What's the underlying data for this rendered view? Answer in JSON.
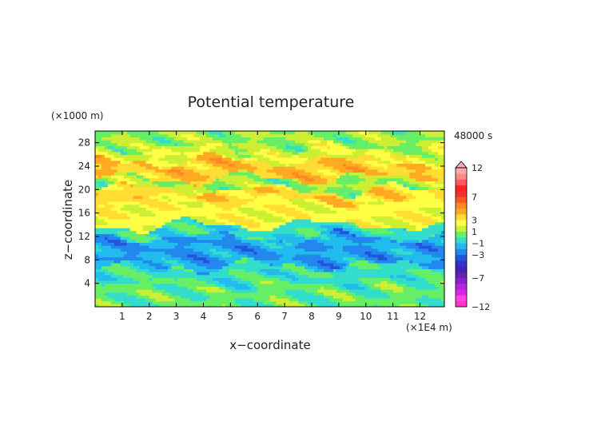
{
  "chart_data": {
    "type": "heatmap",
    "title": "Potential temperature",
    "time_label": "48000 s",
    "xlabel": "x−coordinate",
    "ylabel": "z−coordinate",
    "x_unit": "(×1E4 m)",
    "y_unit": "(×1000 m)",
    "xlim": [
      0,
      12.9
    ],
    "ylim": [
      0,
      30
    ],
    "x_ticks": [
      1,
      2,
      3,
      4,
      5,
      6,
      7,
      8,
      9,
      10,
      11,
      12
    ],
    "y_ticks": [
      4,
      8,
      12,
      16,
      20,
      24,
      28
    ],
    "colorbar": {
      "levels": [
        -12,
        -11,
        -10,
        -9,
        -8,
        -7,
        -6,
        -5,
        -4,
        -3,
        -2,
        -1,
        0,
        1,
        2,
        3,
        4,
        5,
        6,
        7,
        8,
        9,
        10,
        11,
        12
      ],
      "labeled_ticks": [
        "12",
        "7",
        "3",
        "1",
        "−1",
        "−3",
        "−7",
        "−12"
      ],
      "colors": [
        "#ff33cc",
        "#ff44dd",
        "#dd22ee",
        "#bb22dd",
        "#8822cc",
        "#6622aa",
        "#4422bb",
        "#3333cc",
        "#2255dd",
        "#2288ee",
        "#22bbee",
        "#33ddcc",
        "#66ee66",
        "#ccee33",
        "#ffff44",
        "#ffdd33",
        "#ffaa22",
        "#ff8822",
        "#ff5522",
        "#ee3333",
        "#ff2222",
        "#ff5566",
        "#ff8888",
        "#ffaaaa"
      ]
    },
    "layers": [
      {
        "z_range": [
          0,
          4
        ],
        "value": 0.3
      },
      {
        "z_range": [
          4,
          7
        ],
        "value": -0.3
      },
      {
        "z_range": [
          7,
          12
        ],
        "value": -2.0
      },
      {
        "z_range": [
          12,
          14
        ],
        "value": -0.5
      },
      {
        "z_range": [
          14,
          18
        ],
        "value": 2.5
      },
      {
        "z_range": [
          18,
          20
        ],
        "value": 3.5
      },
      {
        "z_range": [
          20,
          22
        ],
        "value": 1.0
      },
      {
        "z_range": [
          22,
          25
        ],
        "value": 4.0
      },
      {
        "z_range": [
          25,
          27
        ],
        "value": 2.0
      },
      {
        "z_range": [
          27,
          30
        ],
        "value": 1.0
      }
    ]
  }
}
